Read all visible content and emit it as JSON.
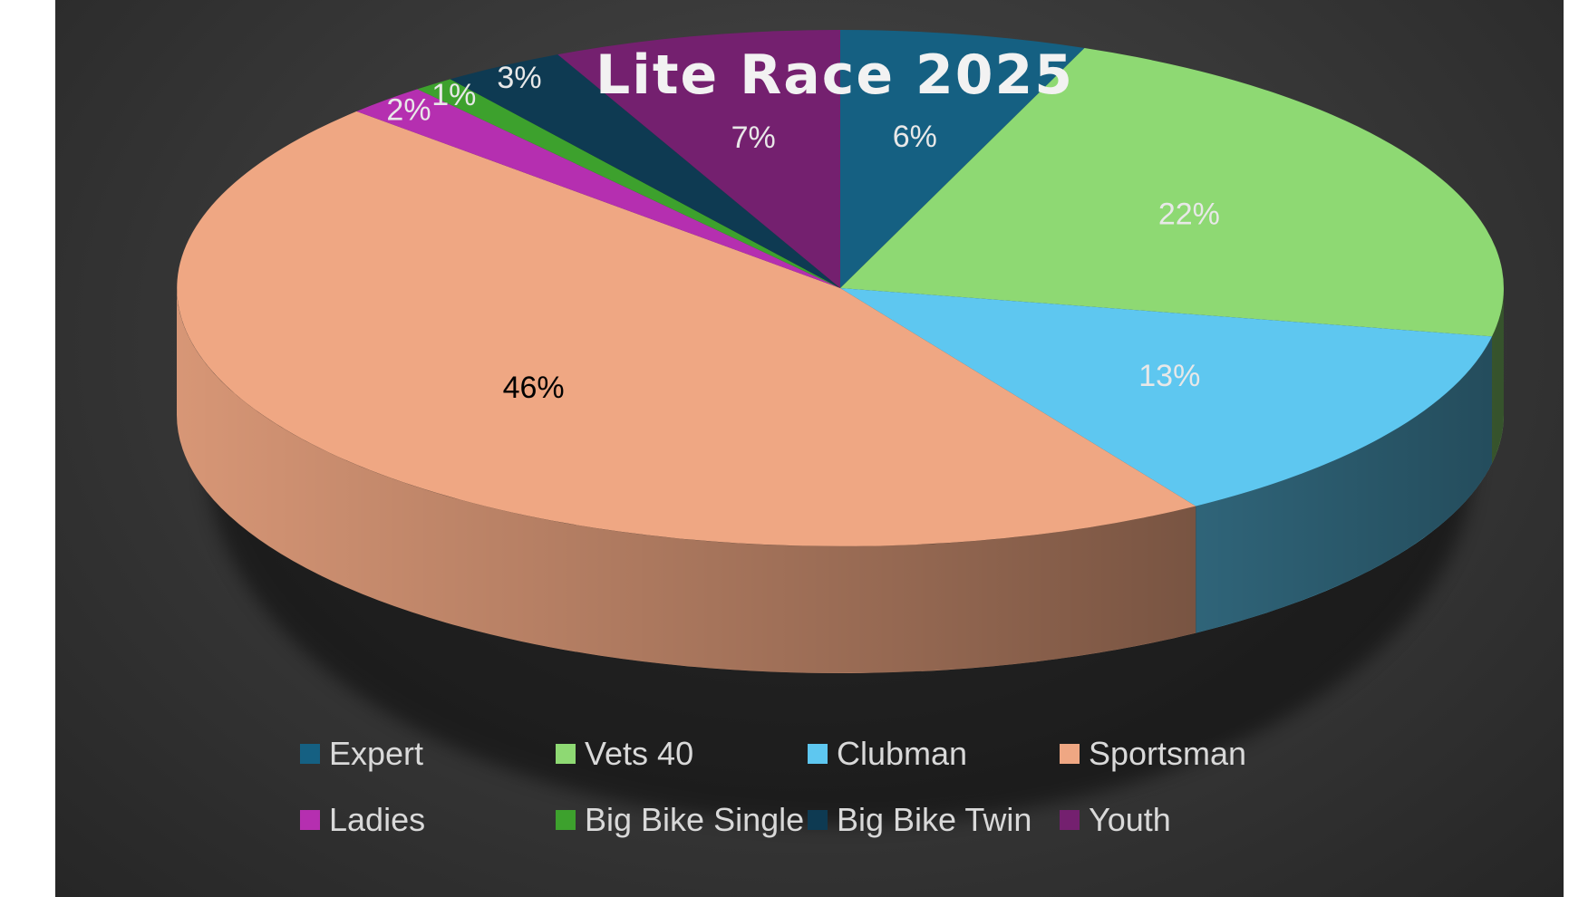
{
  "chart_data": {
    "type": "pie",
    "title": "Lite Race 2025",
    "categories": [
      "Expert",
      "Vets 40",
      "Clubman",
      "Sportsman",
      "Ladies",
      "Big Bike Single",
      "Big Bike Twin",
      "Youth"
    ],
    "values": [
      6,
      22,
      13,
      46,
      2,
      1,
      3,
      7
    ],
    "data_labels": [
      "6%",
      "22%",
      "13%",
      "46%",
      "2%",
      "1%",
      "3%",
      "7%"
    ],
    "colors": [
      "#156082",
      "#8ed973",
      "#5ec7f0",
      "#efa783",
      "#b52fb0",
      "#3da12d",
      "#0e3a52",
      "#74206f"
    ],
    "label_colors": [
      "#e8e8e8",
      "#e8e8e8",
      "#e8e8e8",
      "#000000",
      "#e8e8e8",
      "#e8e8e8",
      "#e8e8e8",
      "#e8e8e8"
    ],
    "style": "3d",
    "legend_position": "bottom"
  }
}
